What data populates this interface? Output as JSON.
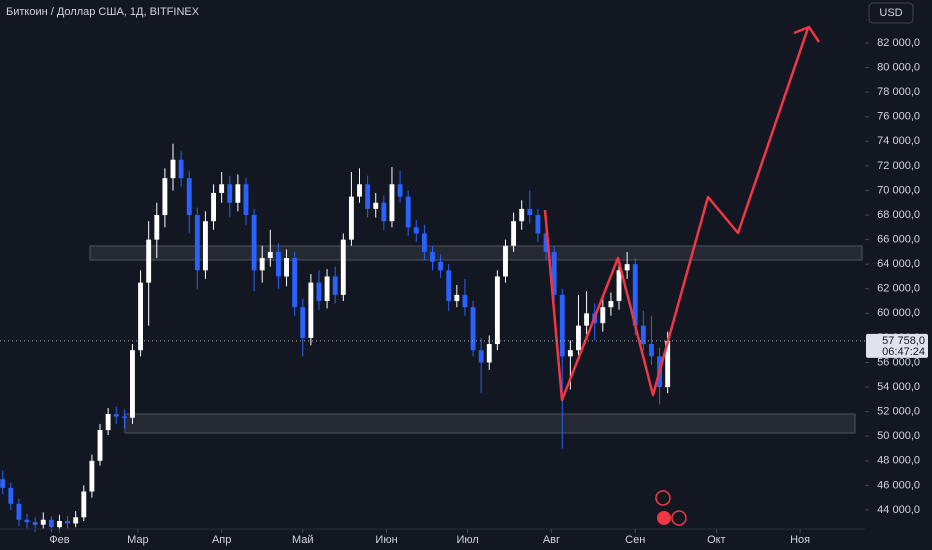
{
  "chart_data": {
    "type": "candlestick",
    "title": "Биткоин / Доллар США, 1Д, BITFINEX",
    "currency": "USD",
    "up_color": "#ffffff",
    "down_color": "#2962ff",
    "xlim": [
      -22,
      298
    ],
    "xticks": [
      {
        "value": 0,
        "label": "Фев"
      },
      {
        "value": 29,
        "label": "Мар"
      },
      {
        "value": 60,
        "label": "Апр"
      },
      {
        "value": 90,
        "label": "Май"
      },
      {
        "value": 121,
        "label": "Июн"
      },
      {
        "value": 151,
        "label": "Июл"
      },
      {
        "value": 182,
        "label": "Авг"
      },
      {
        "value": 213,
        "label": "Сен"
      },
      {
        "value": 243,
        "label": "Окт"
      },
      {
        "value": 274,
        "label": "Ноя"
      }
    ],
    "ylim": [
      42530,
      85500
    ],
    "yticks": [
      {
        "value": 44000,
        "label": "44 000,0"
      },
      {
        "value": 46000,
        "label": "46 000,0"
      },
      {
        "value": 48000,
        "label": "48 000,0"
      },
      {
        "value": 50000,
        "label": "50 000,0"
      },
      {
        "value": 52000,
        "label": "52 000,0"
      },
      {
        "value": 54000,
        "label": "54 000,0"
      },
      {
        "value": 56000,
        "label": "56 000,0"
      },
      {
        "value": 58000,
        "label": "58 000,0"
      },
      {
        "value": 60000,
        "label": "60 000,0"
      },
      {
        "value": 62000,
        "label": "62 000,0"
      },
      {
        "value": 64000,
        "label": "64 000,0"
      },
      {
        "value": 66000,
        "label": "66 000,0"
      },
      {
        "value": 68000,
        "label": "68 000,0"
      },
      {
        "value": 70000,
        "label": "70 000,0"
      },
      {
        "value": 72000,
        "label": "72 000,0"
      },
      {
        "value": 74000,
        "label": "74 000,0"
      },
      {
        "value": 76000,
        "label": "76 000,0"
      },
      {
        "value": 78000,
        "label": "78 000,0"
      },
      {
        "value": 80000,
        "label": "80 000,0"
      },
      {
        "value": 82000,
        "label": "82 000,0"
      }
    ],
    "last_price": {
      "value": 57758,
      "label": "57 758,0"
    },
    "countdown": "06:47:24",
    "x": [
      -21,
      -18,
      -15,
      -12,
      -9,
      -6,
      -3,
      0,
      3,
      6,
      9,
      12,
      15,
      18,
      21,
      24,
      27,
      30,
      33,
      36,
      39,
      42,
      45,
      48,
      51,
      54,
      57,
      60,
      63,
      66,
      69,
      72,
      75,
      78,
      81,
      84,
      87,
      90,
      93,
      96,
      99,
      102,
      105,
      108,
      111,
      114,
      117,
      120,
      123,
      126,
      129,
      132,
      135,
      138,
      141,
      144,
      147,
      150,
      153,
      156,
      159,
      162,
      165,
      168,
      171,
      174,
      177,
      180,
      183,
      186,
      189,
      192,
      195,
      198,
      201,
      204,
      207,
      210,
      213,
      216,
      219,
      222,
      225
    ],
    "candles": [
      [
        46500,
        47200,
        45300,
        45800
      ],
      [
        45800,
        46200,
        44000,
        44500
      ],
      [
        44500,
        44900,
        42700,
        43200
      ],
      [
        43200,
        43700,
        42500,
        43000
      ],
      [
        43000,
        43400,
        42200,
        42800
      ],
      [
        42800,
        43800,
        42500,
        43200
      ],
      [
        43200,
        43500,
        42200,
        42600
      ],
      [
        42600,
        43600,
        42300,
        43100
      ],
      [
        43100,
        43500,
        42500,
        42900
      ],
      [
        42900,
        43900,
        42600,
        43400
      ],
      [
        43400,
        46000,
        43100,
        45500
      ],
      [
        45500,
        48500,
        45000,
        48000
      ],
      [
        48000,
        51000,
        47600,
        50500
      ],
      [
        50500,
        52300,
        50100,
        51800
      ],
      [
        51800,
        52400,
        51000,
        51600
      ],
      [
        51600,
        52200,
        50600,
        51500
      ],
      [
        51500,
        57500,
        51000,
        57000
      ],
      [
        57000,
        63500,
        56500,
        62500
      ],
      [
        62500,
        67500,
        59000,
        66000
      ],
      [
        66000,
        69000,
        64500,
        68000
      ],
      [
        68000,
        71800,
        67000,
        71000
      ],
      [
        71000,
        73800,
        70000,
        72500
      ],
      [
        72500,
        73200,
        70300,
        71000
      ],
      [
        71000,
        71600,
        66500,
        68000
      ],
      [
        68000,
        68600,
        62000,
        63500
      ],
      [
        63500,
        68300,
        62800,
        67500
      ],
      [
        67500,
        70500,
        66800,
        69800
      ],
      [
        69800,
        71500,
        69000,
        70500
      ],
      [
        70500,
        71200,
        67800,
        69000
      ],
      [
        69000,
        71300,
        68300,
        70500
      ],
      [
        70500,
        71000,
        67200,
        68000
      ],
      [
        68000,
        68500,
        61800,
        63500
      ],
      [
        63500,
        65500,
        62500,
        64500
      ],
      [
        64500,
        66800,
        63800,
        65000
      ],
      [
        65000,
        65700,
        62000,
        63000
      ],
      [
        63000,
        65200,
        62200,
        64500
      ],
      [
        64500,
        65000,
        59800,
        60500
      ],
      [
        60500,
        61200,
        56500,
        58000
      ],
      [
        58000,
        63200,
        57400,
        62500
      ],
      [
        62500,
        63500,
        60300,
        61000
      ],
      [
        61000,
        63600,
        60400,
        63000
      ],
      [
        63000,
        63800,
        60800,
        61500
      ],
      [
        61500,
        66500,
        61000,
        66000
      ],
      [
        66000,
        71500,
        65500,
        69500
      ],
      [
        69500,
        71800,
        69000,
        70500
      ],
      [
        70500,
        71200,
        67800,
        68500
      ],
      [
        68500,
        69800,
        67800,
        69000
      ],
      [
        69000,
        69600,
        66800,
        67500
      ],
      [
        67500,
        71900,
        67000,
        70500
      ],
      [
        70500,
        71600,
        69000,
        69500
      ],
      [
        69500,
        70000,
        66300,
        67000
      ],
      [
        67000,
        67600,
        65800,
        66500
      ],
      [
        66500,
        67200,
        64300,
        65000
      ],
      [
        65000,
        65500,
        63500,
        64200
      ],
      [
        64200,
        64800,
        62900,
        63500
      ],
      [
        63500,
        64000,
        60200,
        61000
      ],
      [
        61000,
        62300,
        60500,
        61500
      ],
      [
        61500,
        62800,
        59800,
        60500
      ],
      [
        60500,
        61000,
        56500,
        57000
      ],
      [
        57000,
        58000,
        53500,
        56000
      ],
      [
        56000,
        58200,
        55400,
        57500
      ],
      [
        57500,
        63500,
        57000,
        63000
      ],
      [
        63000,
        66000,
        62500,
        65500
      ],
      [
        65500,
        68200,
        65000,
        67500
      ],
      [
        67500,
        69200,
        66800,
        68500
      ],
      [
        68500,
        70000,
        67300,
        68000
      ],
      [
        68000,
        68500,
        65800,
        66500
      ],
      [
        66500,
        67000,
        64300,
        65000
      ],
      [
        65000,
        65500,
        60800,
        61500
      ],
      [
        61500,
        62000,
        49000,
        56500
      ],
      [
        56500,
        57800,
        53800,
        57000
      ],
      [
        57000,
        61500,
        56300,
        59000
      ],
      [
        59000,
        61800,
        58300,
        60000
      ],
      [
        60000,
        60800,
        57800,
        59200
      ],
      [
        59200,
        61300,
        58500,
        60500
      ],
      [
        60500,
        61700,
        59800,
        61000
      ],
      [
        61000,
        64000,
        60300,
        63500
      ],
      [
        63500,
        65000,
        62800,
        64000
      ],
      [
        64000,
        64500,
        58200,
        59000
      ],
      [
        59000,
        60200,
        57000,
        57500
      ],
      [
        57500,
        59800,
        55800,
        56500
      ],
      [
        56500,
        57200,
        52600,
        54000
      ],
      [
        54000,
        58500,
        53500,
        57758
      ]
    ]
  }
}
